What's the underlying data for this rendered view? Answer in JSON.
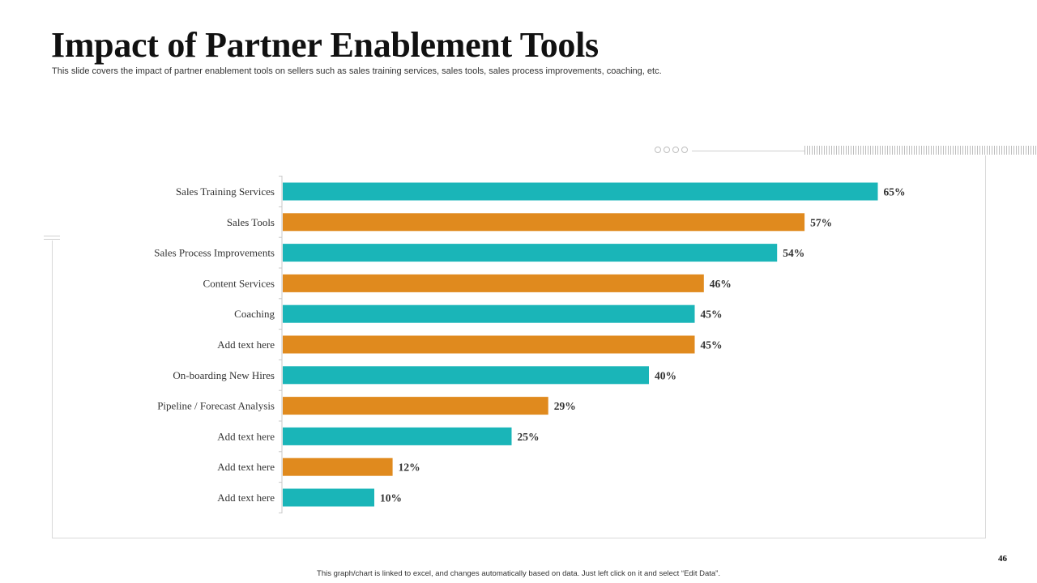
{
  "slide": {
    "title": "Impact of Partner Enablement Tools",
    "subtitle": "This slide covers the impact of partner enablement tools on sellers such as sales training services, sales tools, sales process improvements, coaching, etc.",
    "footer_note": "This graph/chart is linked to excel, and changes automatically based on data. Just left click on it and select “Edit Data”.",
    "page_number": "46"
  },
  "colors": {
    "teal": "#1ab5b8",
    "orange": "#e08a1e",
    "axis": "#c8c8c8"
  },
  "chart_data": {
    "type": "bar",
    "orientation": "horizontal",
    "title": "",
    "xlabel": "",
    "ylabel": "",
    "xlim": [
      0,
      70
    ],
    "grid": false,
    "categories": [
      "Sales Training Services",
      "Sales Tools",
      "Sales Process Improvements",
      "Content Services",
      "Coaching",
      "Add text here",
      "On-boarding New Hires",
      "Pipeline / Forecast Analysis",
      "Add text here",
      "Add text here",
      "Add text here"
    ],
    "values": [
      65,
      57,
      54,
      46,
      45,
      45,
      40,
      29,
      25,
      12,
      10
    ],
    "value_labels": [
      "65%",
      "57%",
      "54%",
      "46%",
      "45%",
      "45%",
      "40%",
      "29%",
      "25%",
      "12%",
      "10%"
    ],
    "bar_colors": [
      "#1ab5b8",
      "#e08a1e",
      "#1ab5b8",
      "#e08a1e",
      "#1ab5b8",
      "#e08a1e",
      "#1ab5b8",
      "#e08a1e",
      "#1ab5b8",
      "#e08a1e",
      "#1ab5b8"
    ]
  }
}
